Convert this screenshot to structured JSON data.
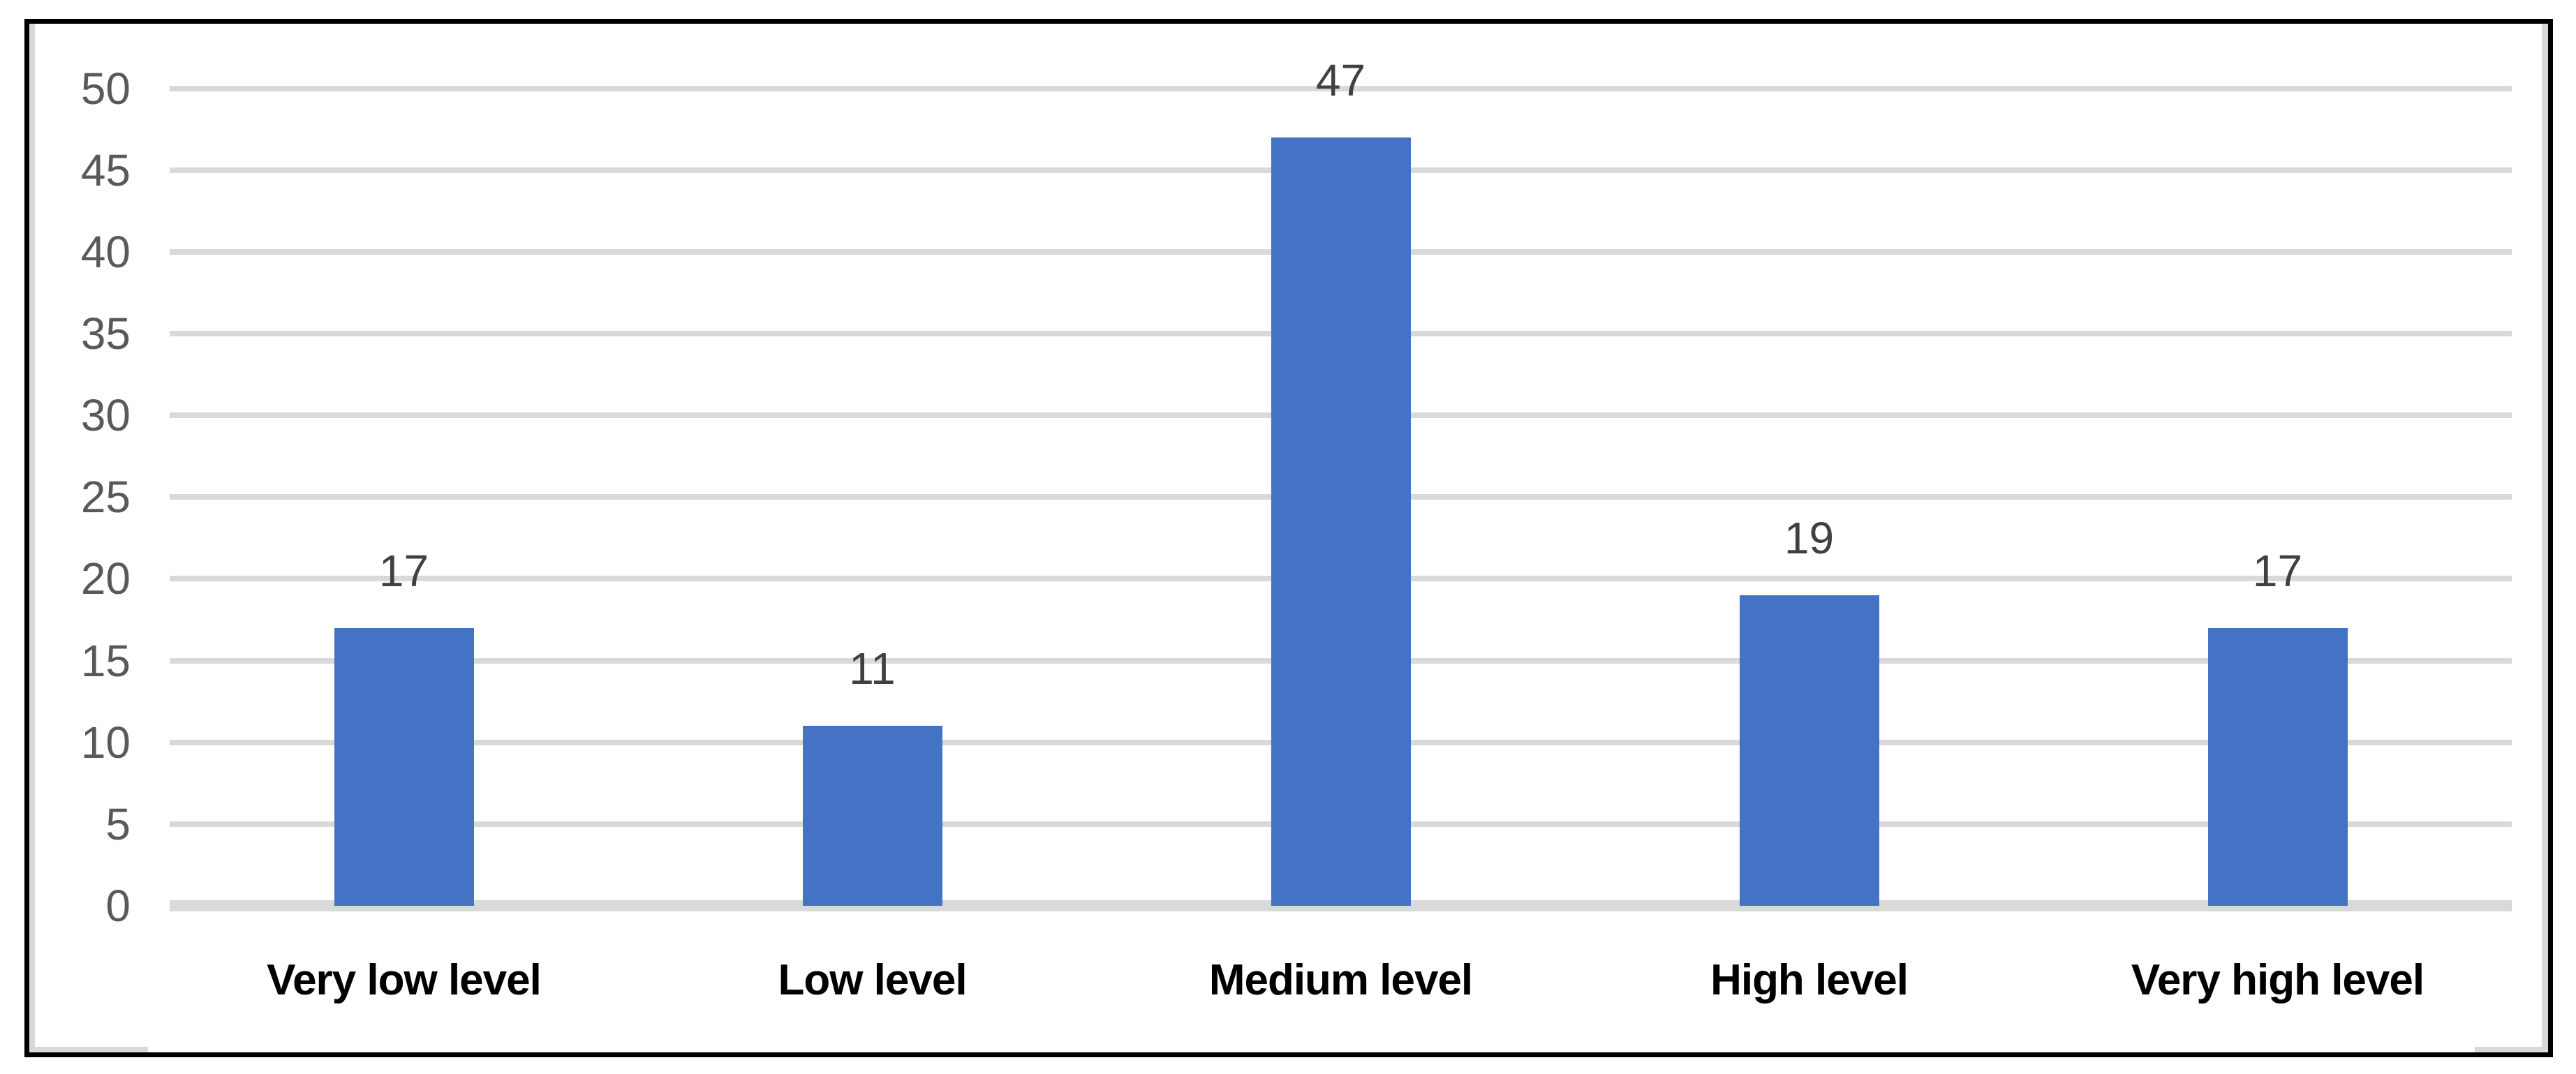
{
  "chart_data": {
    "type": "bar",
    "title": "",
    "xlabel": "",
    "ylabel": "",
    "categories": [
      "Very low level",
      "Low level",
      "Medium level",
      "High level",
      "Very high level"
    ],
    "values": [
      17,
      11,
      47,
      19,
      17
    ],
    "yticks": [
      0,
      5,
      10,
      15,
      20,
      25,
      30,
      35,
      40,
      45,
      50
    ],
    "ylim": [
      0,
      50
    ],
    "grid": "horizontal",
    "legend_position": "none",
    "data_label_position": "outside-end",
    "colors": {
      "bar": "#4472C4",
      "gridline": "#D9D9D9",
      "axis_line": "#D9D9D9",
      "tick_label": "#595959",
      "data_label": "#404040",
      "category_label": "#000000",
      "frame_border": "#000000",
      "inner_edge": "#D9D9D9",
      "background": "#FFFFFF"
    }
  }
}
